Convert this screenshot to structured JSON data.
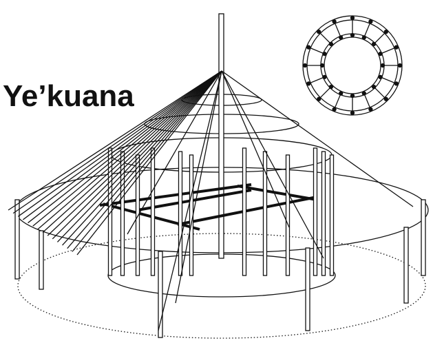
{
  "title": "Ye’kuana"
}
